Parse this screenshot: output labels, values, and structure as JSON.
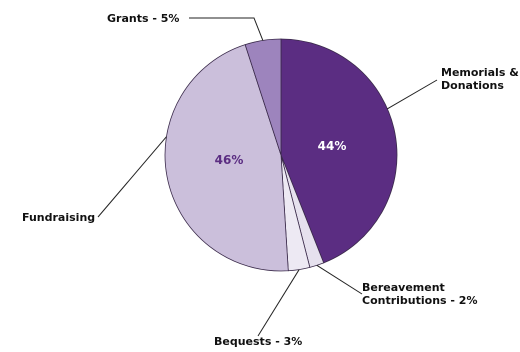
{
  "chart_data": {
    "type": "pie",
    "title": "",
    "slices": [
      {
        "label_lines": [
          "Memorials &",
          "Donations"
        ],
        "value": 44,
        "pct_label": "44%",
        "color": "#5b2d82",
        "pct_color": "#ffffff"
      },
      {
        "label_lines": [
          "Bereavement",
          "Contributions - 2%"
        ],
        "value": 2,
        "pct_label": "",
        "color": "#e6e1ee",
        "pct_color": ""
      },
      {
        "label_lines": [
          "Bequests - 3%"
        ],
        "value": 3,
        "pct_label": "",
        "color": "#ede9f3",
        "pct_color": ""
      },
      {
        "label_lines": [
          "Fundraising"
        ],
        "value": 46,
        "pct_label": "46%",
        "color": "#cbbfdb",
        "pct_color": "#5b2d82"
      },
      {
        "label_lines": [
          "Grants - 5%"
        ],
        "value": 5,
        "pct_label": "",
        "color": "#9d84bd",
        "pct_color": ""
      }
    ],
    "start_angle_deg": 0,
    "direction": "clockwise"
  }
}
